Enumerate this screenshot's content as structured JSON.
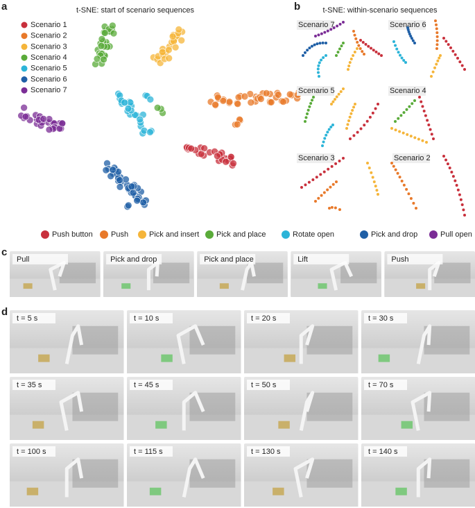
{
  "panel_a": {
    "label": "a",
    "title": "t-SNE: start of scenario sequences",
    "legend": [
      {
        "name": "Scenario 1",
        "color": "#c8303c"
      },
      {
        "name": "Scenario 2",
        "color": "#e8792a"
      },
      {
        "name": "Scenario 3",
        "color": "#f5b53a"
      },
      {
        "name": "Scenario 4",
        "color": "#5aab3a"
      },
      {
        "name": "Scenario 5",
        "color": "#2cb4d8"
      },
      {
        "name": "Scenario 6",
        "color": "#1f5fa6"
      },
      {
        "name": "Scenario 7",
        "color": "#7b2d96"
      }
    ]
  },
  "panel_b": {
    "label": "b",
    "title": "t-SNE: within-scenario sequences",
    "scenarios": [
      "Scenario 7",
      "Scenario 6",
      "Scenario 5",
      "Scenario 4",
      "Scenario 3",
      "Scenario 2"
    ]
  },
  "action_legend": [
    {
      "name": "Push button",
      "color": "#c8303c"
    },
    {
      "name": "Push",
      "color": "#e8792a"
    },
    {
      "name": "Pick and insert",
      "color": "#f5b53a"
    },
    {
      "name": "Pick and place",
      "color": "#5aab3a"
    },
    {
      "name": "Rotate open",
      "color": "#2cb4d8"
    },
    {
      "name": "Pick and drop",
      "color": "#1f5fa6"
    },
    {
      "name": "Pull open",
      "color": "#7b2d96"
    }
  ],
  "panel_c": {
    "label": "c",
    "phases": [
      "Pull",
      "Pick and drop",
      "Pick and place",
      "Lift",
      "Push"
    ]
  },
  "panel_d": {
    "label": "d",
    "frames": [
      "t = 5 s",
      "t = 10 s",
      "t = 20 s",
      "t = 30 s",
      "t = 35 s",
      "t = 45 s",
      "t = 50 s",
      "t = 70 s",
      "t = 100 s",
      "t = 115 s",
      "t = 130 s",
      "t = 140 s"
    ]
  }
}
